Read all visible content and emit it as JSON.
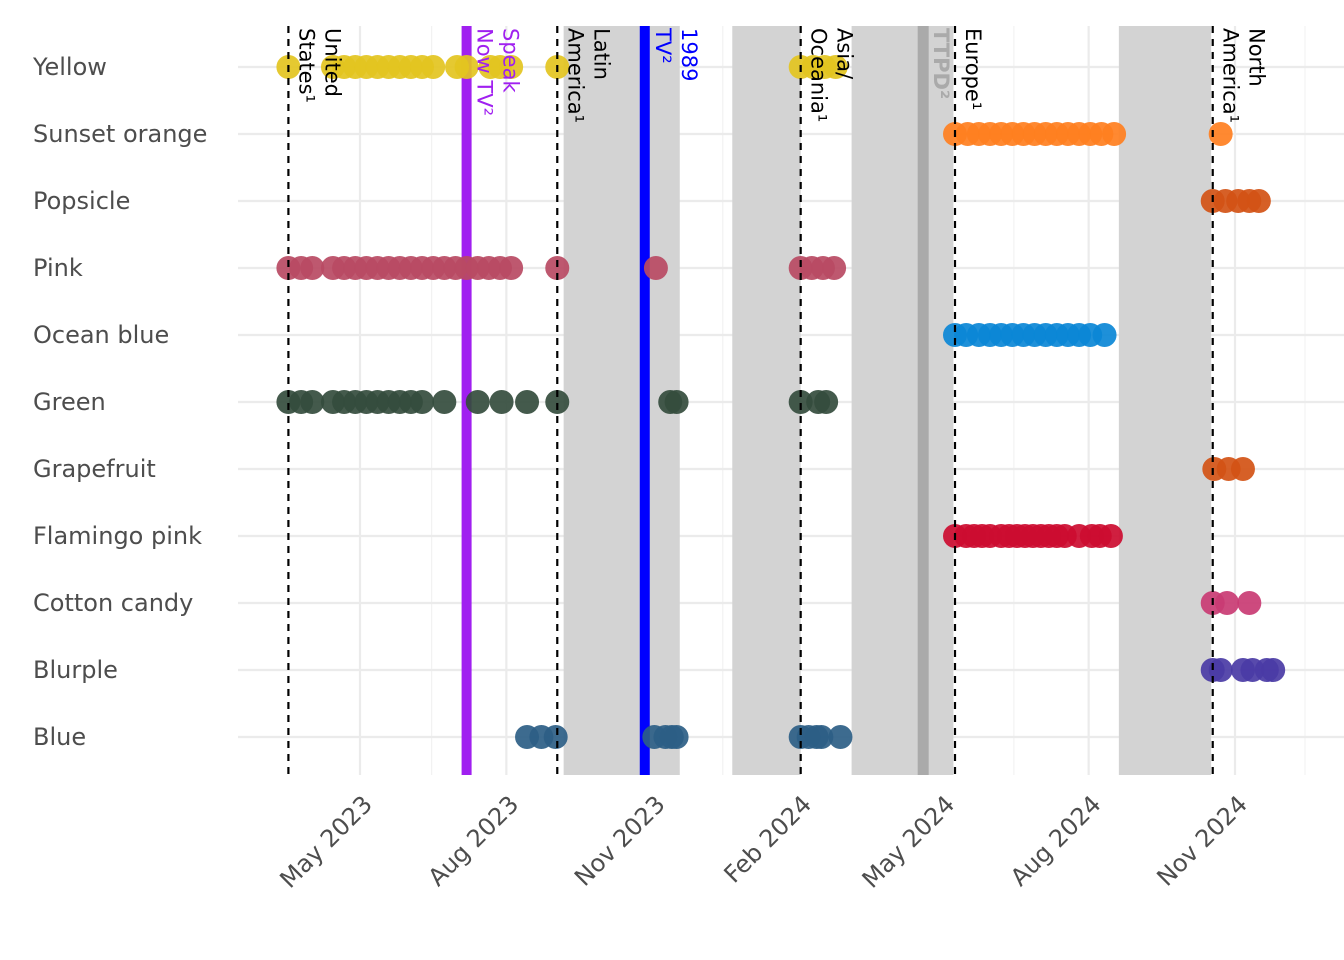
{
  "chart_data": {
    "type": "scatter",
    "title": "",
    "xlabel": "",
    "ylabel": "",
    "x_axis": {
      "type": "date",
      "range": [
        "2023-03-20",
        "2025-01-05"
      ],
      "ticks": [
        {
          "date": "2023-05-01",
          "label": "May 2023"
        },
        {
          "date": "2023-08-01",
          "label": "Aug 2023"
        },
        {
          "date": "2023-11-01",
          "label": "Nov 2023"
        },
        {
          "date": "2024-02-01",
          "label": "Feb 2024"
        },
        {
          "date": "2024-05-01",
          "label": "May 2024"
        },
        {
          "date": "2024-08-01",
          "label": "Aug 2024"
        },
        {
          "date": "2024-11-01",
          "label": "Nov 2024"
        }
      ],
      "minor_ticks": [
        "2023-06-15",
        "2023-09-15",
        "2023-12-15",
        "2024-03-15",
        "2024-06-15",
        "2024-09-15",
        "2024-12-15"
      ]
    },
    "grid": true,
    "categories": [
      "Yellow",
      "Sunset orange",
      "Popsicle",
      "Pink",
      "Ocean blue",
      "Green",
      "Grapefruit",
      "Flamingo pink",
      "Cotton candy",
      "Blurple",
      "Blue"
    ],
    "shaded_periods": [
      {
        "start": "2023-09-06",
        "end": "2023-11-18",
        "color": "#d3d3d3"
      },
      {
        "start": "2023-12-21",
        "end": "2024-02-02",
        "color": "#d3d3d3"
      },
      {
        "start": "2024-03-05",
        "end": "2024-05-08",
        "color": "#d3d3d3"
      },
      {
        "start": "2024-08-20",
        "end": "2024-10-17",
        "color": "#d3d3d3"
      }
    ],
    "annotations": [
      {
        "date": "2023-03-17",
        "lines": [
          "United",
          "States¹"
        ],
        "style": "dashed",
        "color": "#000000"
      },
      {
        "date": "2023-09-02",
        "lines": [
          "Latin",
          "America¹"
        ],
        "style": "dashed",
        "color": "#000000"
      },
      {
        "date": "2024-02-02",
        "lines": [
          "Asia/",
          "Oceania¹"
        ],
        "style": "dashed",
        "color": "#000000"
      },
      {
        "date": "2024-05-09",
        "lines": [
          "Europe¹"
        ],
        "style": "dashed",
        "color": "#000000"
      },
      {
        "date": "2024-10-18",
        "lines": [
          "North",
          "America¹"
        ],
        "style": "dashed",
        "color": "#000000"
      },
      {
        "date": "2023-07-07",
        "lines": [
          "Speak",
          "Now TV²"
        ],
        "style": "solid",
        "color": "#a020f0"
      },
      {
        "date": "2023-10-27",
        "lines": [
          "1989",
          "TV²"
        ],
        "style": "solid",
        "color": "#0000ff"
      },
      {
        "date": "2024-04-19",
        "lines": [
          "TTPD²"
        ],
        "style": "solid",
        "color": "#aaaaaa"
      }
    ],
    "series": [
      {
        "category": "Yellow",
        "color": "#e3c41f",
        "dates": [
          "2023-03-17",
          "2023-04-14",
          "2023-04-21",
          "2023-04-28",
          "2023-05-05",
          "2023-05-12",
          "2023-05-19",
          "2023-05-26",
          "2023-06-02",
          "2023-06-09",
          "2023-06-16",
          "2023-07-01",
          "2023-07-07",
          "2023-07-22",
          "2023-07-28",
          "2023-08-04",
          "2023-09-02",
          "2024-02-02",
          "2024-02-10",
          "2024-02-17",
          "2024-02-24"
        ]
      },
      {
        "category": "Sunset orange",
        "color": "#ff7f20",
        "dates": [
          "2024-05-09",
          "2024-05-17",
          "2024-05-24",
          "2024-05-31",
          "2024-06-07",
          "2024-06-14",
          "2024-06-21",
          "2024-06-28",
          "2024-07-05",
          "2024-07-12",
          "2024-07-19",
          "2024-07-26",
          "2024-08-02",
          "2024-08-09",
          "2024-08-17",
          "2024-10-23"
        ]
      },
      {
        "category": "Popsicle",
        "color": "#d35315",
        "dates": [
          "2024-10-18",
          "2024-10-26",
          "2024-11-03",
          "2024-11-10",
          "2024-11-16"
        ]
      },
      {
        "category": "Pink",
        "color": "#b84a63",
        "dates": [
          "2023-03-17",
          "2023-03-25",
          "2023-04-01",
          "2023-04-14",
          "2023-04-21",
          "2023-04-28",
          "2023-05-05",
          "2023-05-12",
          "2023-05-19",
          "2023-05-26",
          "2023-06-02",
          "2023-06-09",
          "2023-06-16",
          "2023-06-23",
          "2023-06-30",
          "2023-07-07",
          "2023-07-14",
          "2023-07-21",
          "2023-07-28",
          "2023-08-04",
          "2023-09-02",
          "2023-11-03",
          "2024-02-02",
          "2024-02-09",
          "2024-02-16",
          "2024-02-23"
        ]
      },
      {
        "category": "Ocean blue",
        "color": "#0b87d6",
        "dates": [
          "2024-05-09",
          "2024-05-16",
          "2024-05-24",
          "2024-05-31",
          "2024-06-07",
          "2024-06-14",
          "2024-06-21",
          "2024-06-28",
          "2024-07-05",
          "2024-07-12",
          "2024-07-19",
          "2024-07-26",
          "2024-08-02",
          "2024-08-11"
        ]
      },
      {
        "category": "Green",
        "color": "#344c3d",
        "dates": [
          "2023-03-17",
          "2023-03-25",
          "2023-04-01",
          "2023-04-14",
          "2023-04-21",
          "2023-04-28",
          "2023-05-05",
          "2023-05-12",
          "2023-05-19",
          "2023-05-26",
          "2023-06-02",
          "2023-06-09",
          "2023-06-23",
          "2023-07-14",
          "2023-07-29",
          "2023-08-14",
          "2023-09-02",
          "2023-11-12",
          "2023-11-16",
          "2024-02-02",
          "2024-02-13",
          "2024-02-18"
        ]
      },
      {
        "category": "Grapefruit",
        "color": "#d35315",
        "dates": [
          "2024-10-19",
          "2024-10-28",
          "2024-11-06"
        ]
      },
      {
        "category": "Flamingo pink",
        "color": "#cc0c30",
        "dates": [
          "2024-05-09",
          "2024-05-16",
          "2024-05-21",
          "2024-05-26",
          "2024-05-31",
          "2024-06-07",
          "2024-06-12",
          "2024-06-17",
          "2024-06-22",
          "2024-06-27",
          "2024-07-02",
          "2024-07-07",
          "2024-07-12",
          "2024-07-17",
          "2024-07-26",
          "2024-08-03",
          "2024-08-08",
          "2024-08-15"
        ]
      },
      {
        "category": "Cotton candy",
        "color": "#c93b73",
        "dates": [
          "2024-10-18",
          "2024-10-27",
          "2024-11-10"
        ]
      },
      {
        "category": "Blurple",
        "color": "#4a3ba5",
        "dates": [
          "2024-10-18",
          "2024-10-23",
          "2024-11-06",
          "2024-11-12",
          "2024-11-21",
          "2024-11-25"
        ]
      },
      {
        "category": "Blue",
        "color": "#2d5e85",
        "dates": [
          "2023-08-14",
          "2023-08-23",
          "2023-09-01",
          "2023-11-02",
          "2023-11-09",
          "2023-11-13",
          "2023-11-16",
          "2024-02-02",
          "2024-02-07",
          "2024-02-12",
          "2024-02-15",
          "2024-02-27"
        ]
      }
    ]
  }
}
